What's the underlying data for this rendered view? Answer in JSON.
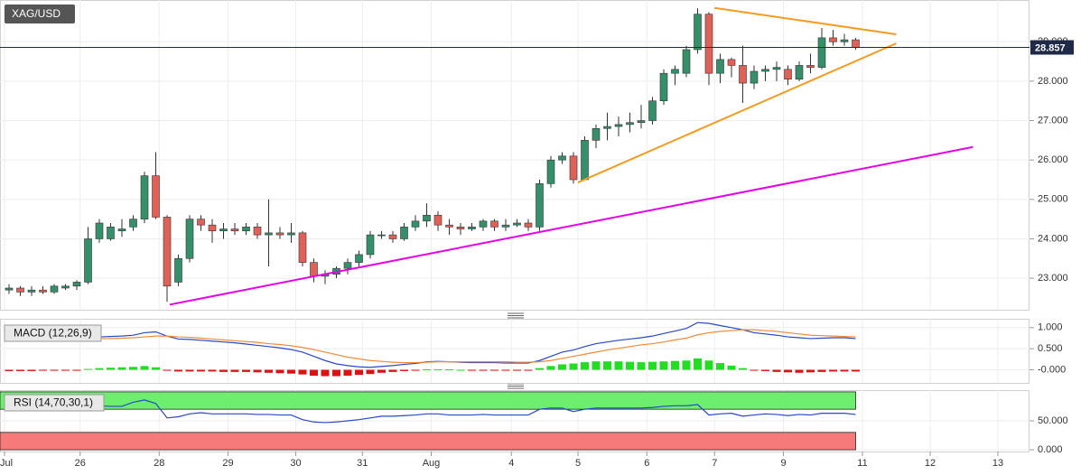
{
  "chart_data": [
    {
      "type": "candlestick",
      "title": "XAG/USD",
      "xlim": [
        -0.8,
        90.4
      ],
      "xticks": [
        {
          "value": -0.4,
          "label": "Jul"
        },
        {
          "value": 6.3,
          "label": "26"
        },
        {
          "value": 13.3,
          "label": "28"
        },
        {
          "value": 19.4,
          "label": "29"
        },
        {
          "value": 25.4,
          "label": "30"
        },
        {
          "value": 31.3,
          "label": "31"
        },
        {
          "value": 37.4,
          "label": "Aug"
        },
        {
          "value": 44.5,
          "label": "4"
        },
        {
          "value": 50.4,
          "label": "5"
        },
        {
          "value": 56.5,
          "label": "6"
        },
        {
          "value": 62.5,
          "label": "7"
        },
        {
          "value": 68.6,
          "label": "9"
        },
        {
          "value": 75.6,
          "label": "11"
        },
        {
          "value": 81.6,
          "label": "12"
        },
        {
          "value": 87.6,
          "label": "13"
        }
      ],
      "ylim": [
        22.2,
        30.06
      ],
      "yticks": [
        {
          "value": 23,
          "label": "23.000"
        },
        {
          "value": 24,
          "label": "24.000"
        },
        {
          "value": 25,
          "label": "25.000"
        },
        {
          "value": 26,
          "label": "26.000"
        },
        {
          "value": 27,
          "label": "27.000"
        },
        {
          "value": 28,
          "label": "28.000"
        },
        {
          "value": 29,
          "label": "29.000"
        }
      ],
      "grid": true,
      "up_color": "#358f6b",
      "down_color": "#e06158",
      "last_price_color": "#1f2a48",
      "open": [
        22.7,
        22.75,
        22.65,
        22.7,
        22.65,
        22.75,
        22.8,
        22.9,
        24.0,
        24.0,
        24.2,
        24.3,
        24.5,
        25.6,
        24.55,
        22.9,
        23.5,
        24.5,
        24.35,
        24.2,
        24.25,
        24.2,
        24.3,
        24.1,
        24.15,
        24.1,
        24.15,
        23.4,
        23.05,
        23.1,
        23.25,
        23.4,
        23.6,
        24.1,
        24.1,
        24.0,
        24.3,
        24.45,
        24.6,
        24.35,
        24.3,
        24.25,
        24.3,
        24.45,
        24.3,
        24.35,
        24.4,
        24.3,
        25.4,
        26.0,
        26.1,
        25.5,
        26.5,
        26.8,
        26.85,
        26.9,
        26.95,
        27.0,
        27.5,
        28.2,
        28.2,
        28.8,
        29.7,
        28.2,
        28.55,
        28.4,
        27.95,
        28.25,
        28.3,
        28.3,
        28.05,
        28.4,
        28.35,
        29.1,
        29.0,
        29.05
      ],
      "high": [
        22.85,
        22.8,
        22.8,
        22.8,
        22.85,
        22.85,
        22.95,
        24.3,
        24.5,
        24.4,
        24.5,
        24.6,
        25.7,
        26.2,
        24.6,
        23.6,
        24.6,
        24.6,
        24.5,
        24.4,
        24.4,
        24.4,
        24.4,
        25.0,
        24.3,
        24.4,
        24.2,
        23.5,
        23.2,
        23.3,
        23.5,
        23.7,
        24.2,
        24.2,
        24.2,
        24.4,
        24.6,
        24.9,
        24.7,
        24.5,
        24.4,
        24.4,
        24.5,
        24.5,
        24.5,
        24.5,
        24.5,
        25.5,
        26.1,
        26.2,
        26.2,
        26.6,
        26.9,
        27.2,
        27.1,
        27.2,
        27.4,
        27.6,
        28.3,
        28.4,
        28.9,
        29.85,
        29.75,
        28.7,
        28.6,
        28.9,
        28.4,
        28.4,
        28.5,
        28.4,
        28.5,
        28.7,
        29.35,
        29.3,
        29.2,
        29.1
      ],
      "low": [
        22.6,
        22.55,
        22.55,
        22.6,
        22.6,
        22.7,
        22.7,
        22.85,
        23.9,
        23.95,
        24.05,
        24.2,
        24.4,
        24.5,
        22.4,
        22.8,
        23.4,
        24.2,
        23.9,
        24.0,
        24.1,
        24.1,
        24.0,
        23.3,
        24.0,
        23.9,
        23.3,
        22.9,
        22.85,
        23.0,
        23.1,
        23.3,
        23.5,
        24.0,
        23.9,
        23.95,
        24.2,
        24.3,
        24.2,
        24.1,
        24.1,
        24.2,
        24.2,
        24.2,
        24.2,
        24.3,
        24.2,
        24.2,
        25.3,
        25.9,
        25.4,
        25.5,
        26.3,
        26.5,
        26.6,
        26.7,
        26.8,
        26.9,
        27.4,
        27.9,
        28.1,
        28.7,
        27.9,
        27.95,
        28.1,
        27.45,
        27.8,
        28.0,
        28.0,
        27.9,
        28.0,
        28.2,
        28.3,
        28.9,
        28.9,
        28.8
      ],
      "close": [
        22.75,
        22.65,
        22.7,
        22.65,
        22.8,
        22.8,
        22.9,
        24.0,
        24.4,
        24.3,
        24.25,
        24.5,
        25.6,
        24.55,
        22.8,
        23.5,
        24.5,
        24.35,
        24.2,
        24.25,
        24.2,
        24.3,
        24.1,
        24.15,
        24.1,
        24.15,
        23.4,
        23.05,
        23.1,
        23.25,
        23.4,
        23.6,
        24.1,
        24.1,
        24.0,
        24.3,
        24.45,
        24.6,
        24.35,
        24.3,
        24.25,
        24.3,
        24.45,
        24.3,
        24.35,
        24.4,
        24.3,
        25.4,
        26.0,
        26.1,
        25.5,
        26.5,
        26.8,
        26.85,
        26.9,
        26.95,
        27.0,
        27.5,
        28.2,
        28.3,
        28.8,
        29.7,
        28.2,
        28.55,
        28.4,
        27.95,
        28.25,
        28.3,
        28.35,
        28.05,
        28.4,
        28.35,
        29.1,
        29.0,
        29.05,
        28.857
      ],
      "trendlines": [
        {
          "color": "#e600e6",
          "points": [
            [
              14.24,
              22.33
            ],
            [
              85.4,
              26.33
            ]
          ]
        },
        {
          "color": "#f39c1f",
          "points": [
            [
              50.4,
              25.43
            ],
            [
              78.6,
              28.96
            ]
          ]
        },
        {
          "color": "#f39c1f",
          "points": [
            [
              62.5,
              29.86
            ],
            [
              78.6,
              29.19
            ]
          ]
        }
      ]
    },
    {
      "type": "macd",
      "title": "MACD (12,26,9)",
      "ylim": [
        -0.31,
        1.21
      ],
      "yticks": [
        {
          "value": 1,
          "label": "1.000"
        },
        {
          "value": 0.5,
          "label": "0.500"
        },
        {
          "value": 0,
          "label": "-0.000"
        }
      ],
      "macd_color": "#2848c8",
      "signal_color": "#f08a3a",
      "hist_up_color": "#22dd22",
      "hist_down_color": "#dd1111",
      "macd": [
        0.78,
        0.76,
        0.74,
        0.72,
        0.72,
        0.72,
        0.73,
        0.76,
        0.78,
        0.79,
        0.8,
        0.82,
        0.88,
        0.9,
        0.8,
        0.73,
        0.72,
        0.7,
        0.68,
        0.66,
        0.64,
        0.61,
        0.58,
        0.55,
        0.52,
        0.48,
        0.42,
        0.32,
        0.22,
        0.14,
        0.1,
        0.07,
        0.06,
        0.08,
        0.1,
        0.13,
        0.15,
        0.19,
        0.2,
        0.19,
        0.18,
        0.17,
        0.17,
        0.17,
        0.16,
        0.16,
        0.16,
        0.22,
        0.32,
        0.42,
        0.47,
        0.55,
        0.62,
        0.66,
        0.7,
        0.73,
        0.76,
        0.8,
        0.86,
        0.92,
        0.98,
        1.12,
        1.1,
        1.05,
        1.0,
        0.95,
        0.88,
        0.85,
        0.82,
        0.78,
        0.76,
        0.74,
        0.75,
        0.76,
        0.76,
        0.74
      ],
      "signal": [
        0.78,
        0.77,
        0.76,
        0.75,
        0.74,
        0.73,
        0.73,
        0.73,
        0.74,
        0.74,
        0.75,
        0.76,
        0.78,
        0.8,
        0.8,
        0.78,
        0.77,
        0.75,
        0.73,
        0.71,
        0.69,
        0.67,
        0.65,
        0.62,
        0.6,
        0.57,
        0.53,
        0.48,
        0.42,
        0.36,
        0.3,
        0.26,
        0.22,
        0.2,
        0.18,
        0.17,
        0.17,
        0.18,
        0.19,
        0.19,
        0.19,
        0.19,
        0.19,
        0.19,
        0.19,
        0.18,
        0.18,
        0.19,
        0.22,
        0.27,
        0.32,
        0.37,
        0.42,
        0.47,
        0.51,
        0.55,
        0.59,
        0.62,
        0.66,
        0.71,
        0.75,
        0.83,
        0.88,
        0.91,
        0.93,
        0.95,
        0.95,
        0.93,
        0.91,
        0.88,
        0.85,
        0.82,
        0.81,
        0.8,
        0.79,
        0.78
      ],
      "histogram": [
        -0.03,
        -0.03,
        -0.03,
        -0.02,
        -0.02,
        -0.02,
        -0.01,
        0.02,
        0.04,
        0.05,
        0.06,
        0.07,
        0.09,
        0.06,
        -0.02,
        -0.04,
        -0.04,
        -0.04,
        -0.04,
        -0.05,
        -0.05,
        -0.05,
        -0.06,
        -0.07,
        -0.08,
        -0.09,
        -0.11,
        -0.14,
        -0.15,
        -0.15,
        -0.14,
        -0.12,
        -0.1,
        -0.07,
        -0.05,
        -0.03,
        -0.02,
        0.01,
        0.01,
        0.01,
        0.0,
        -0.01,
        -0.01,
        -0.01,
        -0.02,
        -0.02,
        -0.01,
        0.04,
        0.09,
        0.13,
        0.15,
        0.18,
        0.2,
        0.2,
        0.2,
        0.19,
        0.18,
        0.19,
        0.2,
        0.21,
        0.22,
        0.27,
        0.22,
        0.16,
        0.1,
        0.04,
        -0.02,
        -0.03,
        -0.05,
        -0.06,
        -0.07,
        -0.06,
        -0.05,
        -0.04,
        -0.04,
        -0.04
      ]
    },
    {
      "type": "rsi",
      "title": "RSI (14,70,30,1)",
      "ylim": [
        -3,
        103
      ],
      "yticks": [
        {
          "value": 50,
          "label": "50.000"
        },
        {
          "value": 0,
          "label": "0.000"
        }
      ],
      "line_color": "#2848c8",
      "bands": [
        {
          "from": 70,
          "to": 100,
          "color": "#6eee6e"
        },
        {
          "from": 0,
          "to": 30,
          "color": "#f77a7a"
        }
      ],
      "values": [
        70,
        68,
        68,
        68,
        68,
        68,
        69,
        75,
        76,
        75,
        75,
        82,
        86,
        80,
        55,
        57,
        62,
        64,
        62,
        62,
        62,
        62,
        61,
        61,
        60,
        60,
        52,
        48,
        47,
        48,
        50,
        52,
        55,
        58,
        58,
        59,
        60,
        62,
        62,
        60,
        60,
        60,
        61,
        60,
        60,
        60,
        60,
        70,
        72,
        72,
        66,
        70,
        72,
        72,
        72,
        72,
        72,
        73,
        75,
        76,
        76,
        78,
        60,
        62,
        63,
        58,
        60,
        62,
        61,
        59,
        61,
        60,
        63,
        63,
        63,
        61
      ]
    }
  ]
}
